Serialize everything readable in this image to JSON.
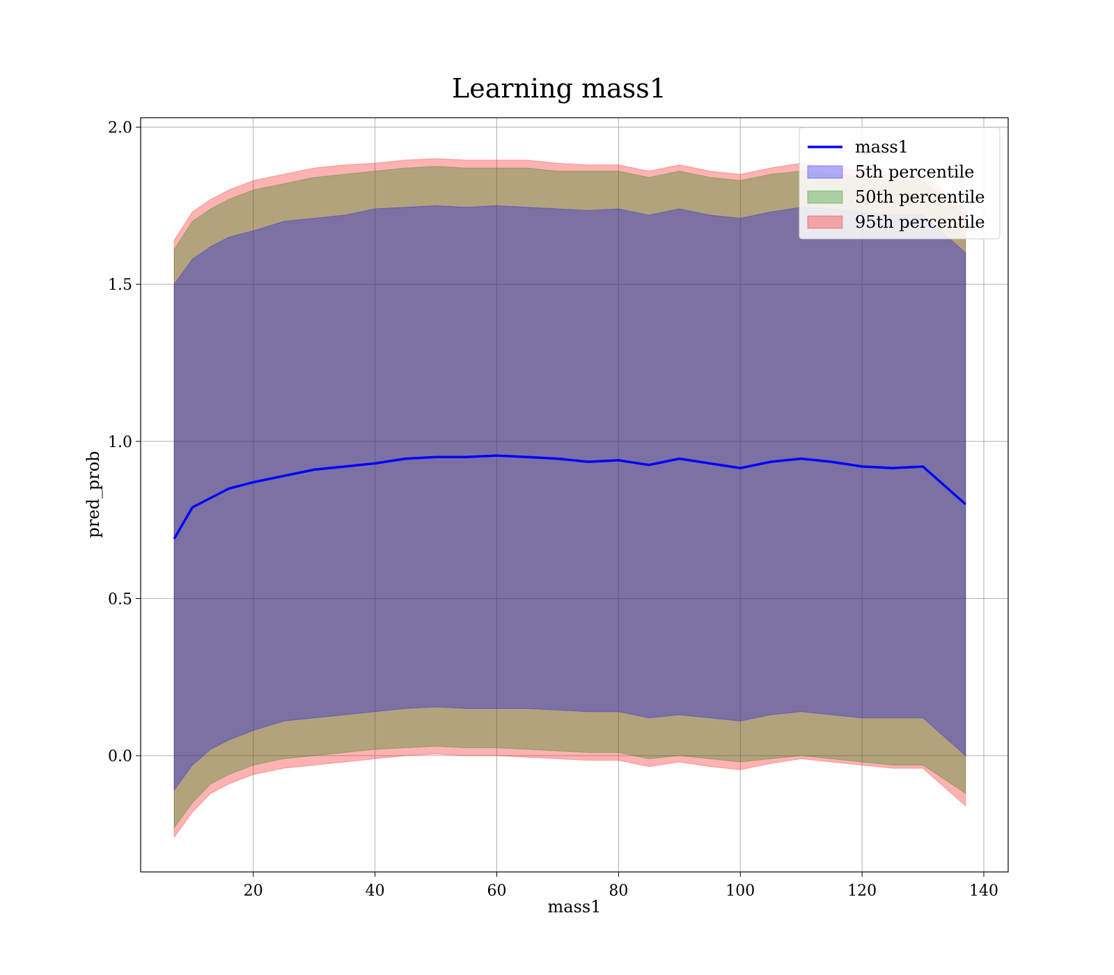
{
  "chart_data": {
    "type": "line",
    "title": "Learning mass1",
    "xlabel": "mass1",
    "ylabel": "pred_prob",
    "xlim": [
      1.5,
      144
    ],
    "ylim": [
      -0.37,
      2.03
    ],
    "x_ticks": [
      20,
      40,
      60,
      80,
      100,
      120,
      140
    ],
    "y_ticks": [
      0.0,
      0.5,
      1.0,
      1.5,
      2.0
    ],
    "x_tick_labels": [
      "20",
      "40",
      "60",
      "80",
      "100",
      "120",
      "140"
    ],
    "y_tick_labels": [
      "0.0",
      "0.5",
      "1.0",
      "1.5",
      "2.0"
    ],
    "grid": true,
    "legend_position": "top-right",
    "x": [
      7,
      10,
      13,
      16,
      20,
      25,
      30,
      35,
      40,
      45,
      50,
      55,
      60,
      65,
      70,
      75,
      80,
      85,
      90,
      95,
      100,
      105,
      110,
      115,
      120,
      125,
      130,
      137
    ],
    "series": [
      {
        "name": "mass1",
        "kind": "line",
        "color": "#0000ff",
        "values": [
          0.69,
          0.79,
          0.82,
          0.85,
          0.87,
          0.89,
          0.91,
          0.92,
          0.93,
          0.945,
          0.95,
          0.95,
          0.955,
          0.95,
          0.945,
          0.935,
          0.94,
          0.925,
          0.945,
          0.93,
          0.915,
          0.935,
          0.945,
          0.935,
          0.92,
          0.915,
          0.92,
          0.8
        ]
      },
      {
        "name": "5th percentile",
        "kind": "band",
        "color": "#0000ff",
        "lower": [
          -0.11,
          -0.03,
          0.02,
          0.05,
          0.08,
          0.11,
          0.12,
          0.13,
          0.14,
          0.15,
          0.155,
          0.15,
          0.15,
          0.15,
          0.145,
          0.14,
          0.14,
          0.12,
          0.13,
          0.12,
          0.11,
          0.13,
          0.14,
          0.13,
          0.12,
          0.12,
          0.12,
          0.0
        ],
        "upper": [
          1.5,
          1.58,
          1.62,
          1.65,
          1.67,
          1.7,
          1.71,
          1.72,
          1.74,
          1.745,
          1.75,
          1.745,
          1.75,
          1.745,
          1.74,
          1.735,
          1.74,
          1.72,
          1.74,
          1.72,
          1.71,
          1.73,
          1.745,
          1.74,
          1.73,
          1.72,
          1.72,
          1.6
        ]
      },
      {
        "name": "50th percentile",
        "kind": "band",
        "color": "#008000",
        "lower": [
          -0.23,
          -0.15,
          -0.09,
          -0.06,
          -0.03,
          -0.01,
          0.0,
          0.01,
          0.02,
          0.025,
          0.03,
          0.025,
          0.025,
          0.02,
          0.015,
          0.01,
          0.01,
          -0.01,
          0.0,
          -0.01,
          -0.02,
          -0.01,
          0.0,
          -0.01,
          -0.02,
          -0.03,
          -0.03,
          -0.12
        ],
        "upper": [
          1.61,
          1.7,
          1.74,
          1.77,
          1.8,
          1.82,
          1.84,
          1.85,
          1.86,
          1.87,
          1.875,
          1.87,
          1.87,
          1.87,
          1.86,
          1.86,
          1.86,
          1.84,
          1.86,
          1.84,
          1.83,
          1.85,
          1.86,
          1.85,
          1.84,
          1.83,
          1.83,
          1.72
        ]
      },
      {
        "name": "95th percentile",
        "kind": "band",
        "color": "#ff0000",
        "lower": [
          -0.26,
          -0.18,
          -0.12,
          -0.09,
          -0.06,
          -0.04,
          -0.03,
          -0.02,
          -0.01,
          0.0,
          0.005,
          0.0,
          0.0,
          -0.005,
          -0.01,
          -0.015,
          -0.015,
          -0.035,
          -0.02,
          -0.035,
          -0.045,
          -0.025,
          -0.01,
          -0.02,
          -0.03,
          -0.04,
          -0.04,
          -0.16
        ],
        "upper": [
          1.64,
          1.73,
          1.77,
          1.8,
          1.83,
          1.85,
          1.87,
          1.88,
          1.885,
          1.895,
          1.9,
          1.895,
          1.895,
          1.895,
          1.885,
          1.88,
          1.88,
          1.86,
          1.88,
          1.86,
          1.85,
          1.87,
          1.885,
          1.875,
          1.86,
          1.85,
          1.85,
          1.74
        ]
      }
    ]
  },
  "legend": {
    "items": [
      {
        "label": "mass1",
        "kind": "line",
        "color": "#0000ff"
      },
      {
        "label": "5th percentile",
        "kind": "patch",
        "color": "#0000ff"
      },
      {
        "label": "50th percentile",
        "kind": "patch",
        "color": "#008000"
      },
      {
        "label": "95th percentile",
        "kind": "patch",
        "color": "#ff0000"
      }
    ]
  }
}
